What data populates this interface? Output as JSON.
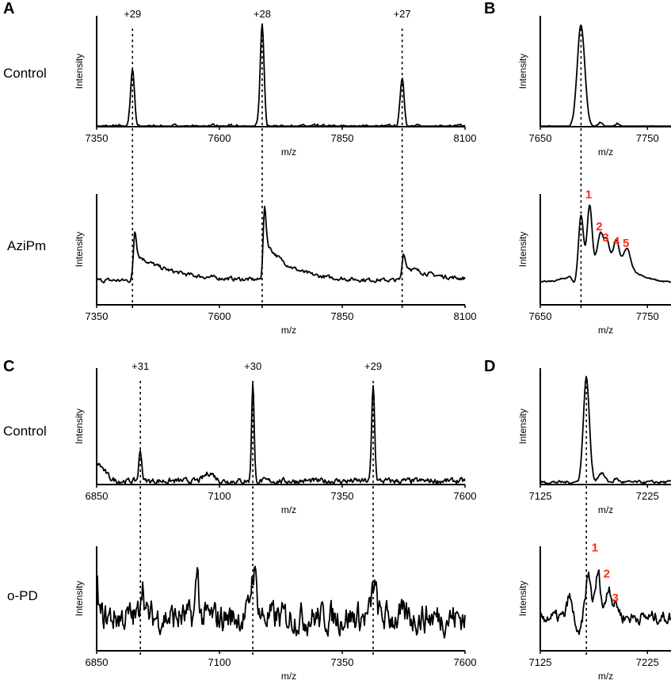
{
  "panel_letters": [
    "A",
    "B",
    "C",
    "D"
  ],
  "row_labels": [
    "Control",
    "AziPm",
    "Control",
    "o-PD"
  ],
  "colors": {
    "trace": "#000000",
    "annotation": "#ff2a1a",
    "marker": "#000000"
  },
  "chart_data": [
    {
      "id": "A-control",
      "type": "line",
      "xlabel": "m/z",
      "ylabel": "Intensity",
      "xlim": [
        7350,
        8100
      ],
      "xticks": [
        "7350",
        "7600",
        "7850",
        "8100"
      ],
      "baseline": 0.0,
      "noise": 0.015,
      "peaks": [
        [
          7423,
          0.52,
          4,
          0
        ],
        [
          7687,
          0.91,
          4,
          0
        ],
        [
          7972,
          0.45,
          4,
          0
        ]
      ],
      "charge_labels": [
        {
          "x": 7423,
          "text": "+29"
        },
        {
          "x": 7687,
          "text": "+28"
        },
        {
          "x": 7972,
          "text": "+27"
        }
      ],
      "markers": [
        7423,
        7687,
        7972
      ]
    },
    {
      "id": "A-azipm",
      "type": "line",
      "xlabel": "m/z",
      "ylabel": "Intensity",
      "xlim": [
        7350,
        8100
      ],
      "xticks": [
        "7350",
        "7600",
        "7850",
        "8100"
      ],
      "baseline": 0.22,
      "noise": 0.015,
      "peaks": [
        [
          7428,
          0.45,
          3,
          70
        ],
        [
          7692,
          0.65,
          3,
          50
        ],
        [
          7975,
          0.25,
          3,
          60
        ]
      ],
      "markers": [
        7423,
        7687,
        7972
      ]
    },
    {
      "id": "B-control",
      "type": "line",
      "xlabel": "m/z",
      "ylabel": "Intensity",
      "xlim": [
        7650,
        7772
      ],
      "xticks": [
        "7650",
        "7750"
      ],
      "baseline": 0.0,
      "noise": 0.006,
      "peaks": [
        [
          7688,
          0.92,
          3.5,
          0
        ],
        [
          7706,
          0.04,
          2,
          0
        ],
        [
          7722,
          0.03,
          2,
          0
        ]
      ],
      "markers": [
        7688
      ]
    },
    {
      "id": "B-azipm",
      "type": "line",
      "xlabel": "m/z",
      "ylabel": "Intensity",
      "xlim": [
        7650,
        7772
      ],
      "xticks": [
        "7650",
        "7750"
      ],
      "baseline": 0.2,
      "noise": 0.006,
      "peaks": [
        [
          7682,
          -0.08,
          2,
          0
        ],
        [
          7688,
          0.5,
          2.2,
          0
        ],
        [
          7696,
          0.55,
          2.2,
          0
        ],
        [
          7706,
          0.25,
          2.5,
          0
        ],
        [
          7712,
          0.18,
          2.5,
          0
        ],
        [
          7721,
          0.2,
          2.5,
          0
        ],
        [
          7731,
          0.17,
          3,
          0
        ],
        [
          7712,
          0.2,
          22,
          0
        ]
      ],
      "annotations": [
        {
          "x": 7695,
          "y": 0.96,
          "text": "1"
        },
        {
          "x": 7705,
          "y": 0.67,
          "text": "2"
        },
        {
          "x": 7711,
          "y": 0.57,
          "text": "3"
        },
        {
          "x": 7721,
          "y": 0.54,
          "text": "4"
        },
        {
          "x": 7730,
          "y": 0.52,
          "text": "5"
        }
      ],
      "markers": [
        7688
      ]
    },
    {
      "id": "C-control",
      "type": "line",
      "xlabel": "m/z",
      "ylabel": "Intensity",
      "xlim": [
        6850,
        7600
      ],
      "xticks": [
        "6850",
        "7100",
        "7350",
        "7600"
      ],
      "baseline": 0.03,
      "noise": 0.02,
      "peaks": [
        [
          6850,
          0.15,
          15,
          0
        ],
        [
          6939,
          0.26,
          3,
          0
        ],
        [
          7080,
          0.07,
          10,
          0
        ],
        [
          7168,
          0.86,
          2.5,
          0
        ],
        [
          7413,
          0.82,
          3,
          0
        ]
      ],
      "charge_labels": [
        {
          "x": 6939,
          "text": "+31"
        },
        {
          "x": 7168,
          "text": "+30"
        },
        {
          "x": 7413,
          "text": "+29"
        }
      ],
      "markers": [
        6939,
        7168,
        7413
      ]
    },
    {
      "id": "C-opd",
      "type": "line",
      "xlabel": "m/z",
      "ylabel": "Intensity",
      "xlim": [
        6850,
        7600
      ],
      "xticks": [
        "6850",
        "7100",
        "7350",
        "7600"
      ],
      "baseline": 0.32,
      "noise": 0.12,
      "peaks": [
        [
          6850,
          0.3,
          3,
          0
        ],
        [
          6943,
          0.35,
          4,
          0
        ],
        [
          7055,
          0.45,
          3,
          0
        ],
        [
          7170,
          0.45,
          6,
          0
        ],
        [
          7415,
          0.3,
          5,
          0
        ]
      ],
      "markers": [
        6939,
        7168,
        7413
      ]
    },
    {
      "id": "D-control",
      "type": "line",
      "xlabel": "m/z",
      "ylabel": "Intensity",
      "xlim": [
        7125,
        7247
      ],
      "xticks": [
        "7125",
        "7225"
      ],
      "baseline": 0.02,
      "noise": 0.01,
      "peaks": [
        [
          7168,
          0.9,
          2.8,
          0
        ],
        [
          7182,
          0.08,
          3,
          0
        ],
        [
          7196,
          0.03,
          2,
          0
        ]
      ],
      "markers": [
        7168
      ]
    },
    {
      "id": "D-opd",
      "type": "line",
      "xlabel": "m/z",
      "ylabel": "Intensity",
      "xlim": [
        7125,
        7247
      ],
      "xticks": [
        "7125",
        "7225"
      ],
      "baseline": 0.32,
      "noise": 0.05,
      "peaks": [
        [
          7152,
          0.2,
          2,
          0
        ],
        [
          7161,
          -0.2,
          2,
          0
        ],
        [
          7170,
          0.4,
          2.5,
          0
        ],
        [
          7179,
          0.42,
          2.5,
          0
        ],
        [
          7189,
          0.3,
          2.5,
          0
        ],
        [
          7196,
          0.12,
          2.5,
          0
        ]
      ],
      "annotations": [
        {
          "x": 7176,
          "y": 0.95,
          "text": "1"
        },
        {
          "x": 7187,
          "y": 0.7,
          "text": "2"
        },
        {
          "x": 7195,
          "y": 0.47,
          "text": "3"
        }
      ],
      "markers": [
        7168
      ]
    }
  ]
}
